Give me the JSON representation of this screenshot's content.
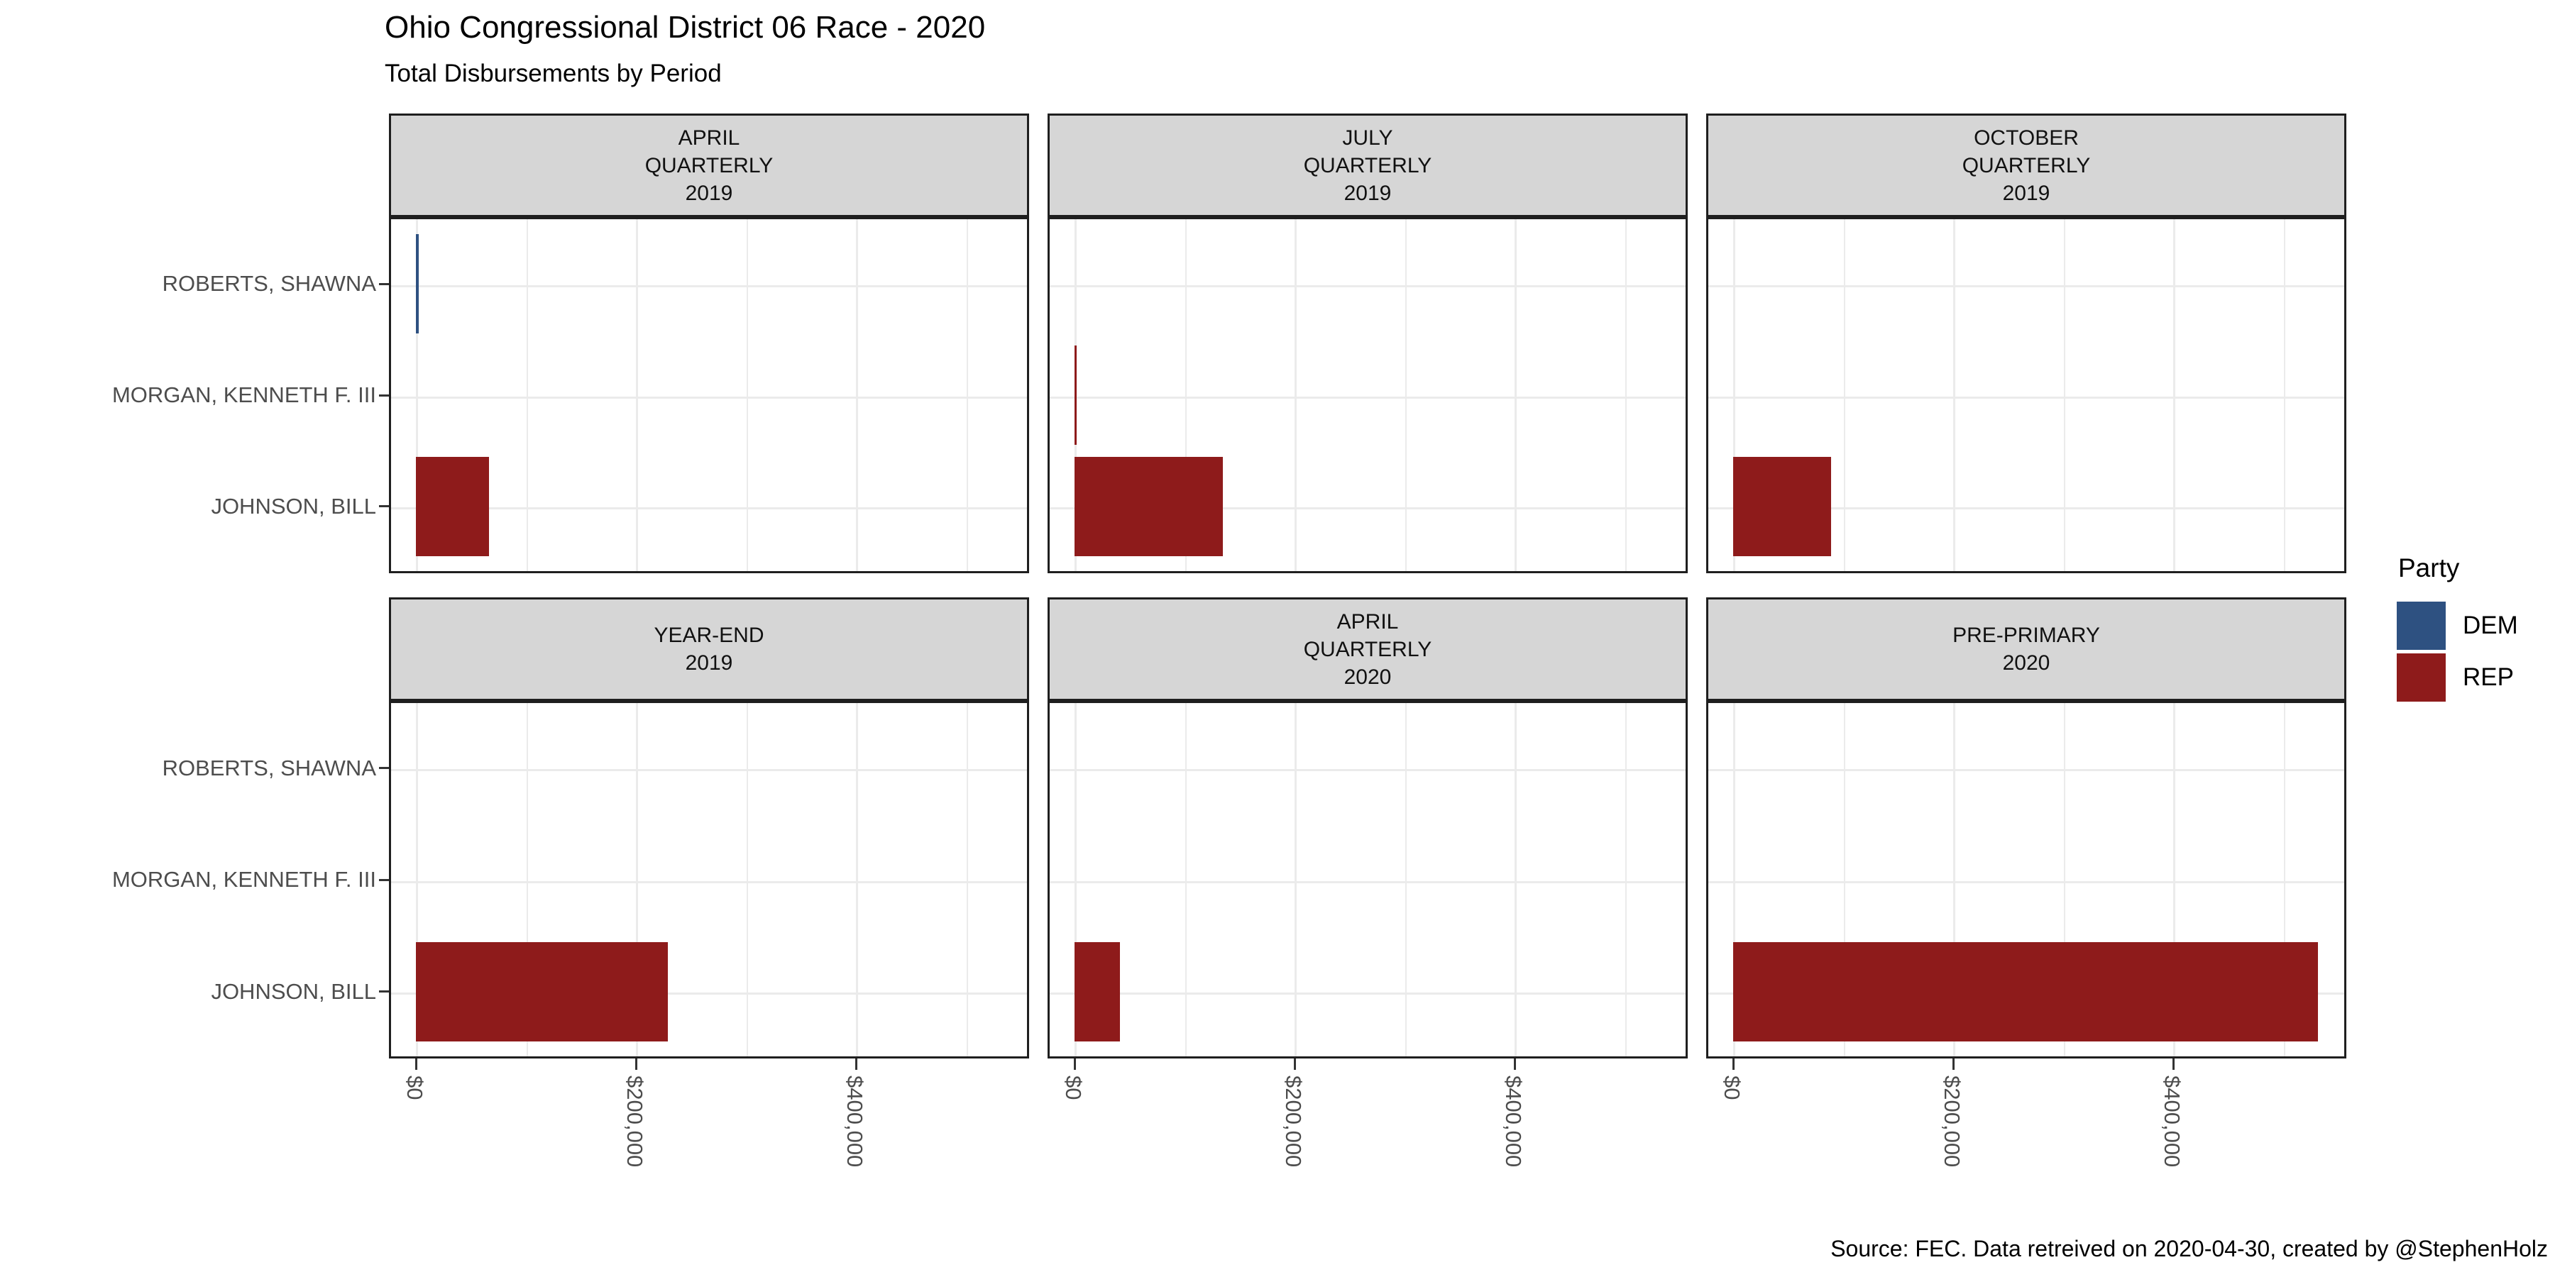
{
  "title": "Ohio Congressional District 06 Race - 2020",
  "subtitle": "Total Disbursements by Period",
  "caption": "Source: FEC. Data retreived on 2020-04-30, created by @StephenHolz",
  "legend": {
    "title": "Party",
    "items": [
      {
        "label": "DEM",
        "color": "#2e5181"
      },
      {
        "label": "REP",
        "color": "#8e1b1b"
      }
    ]
  },
  "colors": {
    "strip_background": "#d6d6d6",
    "panel_border": "#1f1f1f",
    "gridline": "#ebebeb",
    "axis_text": "#4d4d4d",
    "dem": "#2e5181",
    "rep": "#8e1b1b"
  },
  "chart_data": {
    "type": "bar",
    "orientation": "horizontal",
    "grid": "on",
    "legend_position": "right",
    "categories": [
      "ROBERTS, SHAWNA",
      "MORGAN, KENNETH F. III",
      "JOHNSON, BILL"
    ],
    "x_axis": {
      "tick_values": [
        0,
        200000,
        400000
      ],
      "tick_labels": [
        "$0",
        "$200,000",
        "$400,000"
      ],
      "minor_tick_values": [
        100000,
        300000,
        500000
      ],
      "xlim": [
        0,
        558000
      ],
      "label_rotation_deg": 90
    },
    "facets": [
      {
        "label_lines": [
          "APRIL",
          "QUARTERLY",
          "2019"
        ],
        "bars": [
          {
            "candidate": "ROBERTS, SHAWNA",
            "party": "DEM",
            "value": 2500
          },
          {
            "candidate": "JOHNSON, BILL",
            "party": "REP",
            "value": 66500
          }
        ]
      },
      {
        "label_lines": [
          "JULY",
          "QUARTERLY",
          "2019"
        ],
        "bars": [
          {
            "candidate": "MORGAN, KENNETH F. III",
            "party": "REP",
            "value": 2000
          },
          {
            "candidate": "JOHNSON, BILL",
            "party": "REP",
            "value": 135000
          }
        ]
      },
      {
        "label_lines": [
          "OCTOBER",
          "QUARTERLY",
          "2019"
        ],
        "bars": [
          {
            "candidate": "JOHNSON, BILL",
            "party": "REP",
            "value": 89000
          }
        ]
      },
      {
        "label_lines": [
          "YEAR-END",
          "2019"
        ],
        "bars": [
          {
            "candidate": "JOHNSON, BILL",
            "party": "REP",
            "value": 229000
          }
        ]
      },
      {
        "label_lines": [
          "APRIL",
          "QUARTERLY",
          "2020"
        ],
        "bars": [
          {
            "candidate": "JOHNSON, BILL",
            "party": "REP",
            "value": 41500
          }
        ]
      },
      {
        "label_lines": [
          "PRE-PRIMARY",
          "2020"
        ],
        "bars": [
          {
            "candidate": "JOHNSON, BILL",
            "party": "REP",
            "value": 531500
          }
        ]
      }
    ]
  }
}
